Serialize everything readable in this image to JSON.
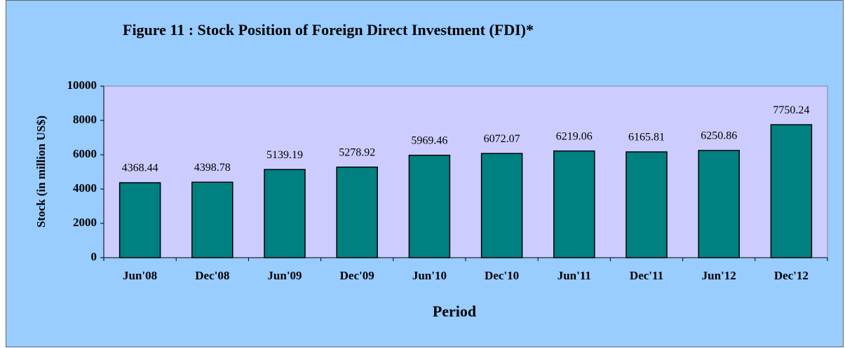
{
  "chart_data": {
    "type": "bar",
    "title": "Figure 11 : Stock Position of Foreign Direct Investment (FDI)*",
    "x_label": "Period",
    "y_label": "Stock (in million US$)",
    "categories": [
      "Jun'08",
      "Dec'08",
      "Jun'09",
      "Dec'09",
      "Jun'10",
      "Dec'10",
      "Jun'11",
      "Dec'11",
      "Jun'12",
      "Dec'12"
    ],
    "values": [
      4368.44,
      4398.78,
      5139.19,
      5278.92,
      5969.46,
      6072.07,
      6219.06,
      6165.81,
      6250.86,
      7750.24
    ],
    "color": "#008080",
    "ylim": [
      0,
      10000
    ],
    "yticks": [
      0,
      2000,
      4000,
      6000,
      8000,
      10000
    ],
    "grid": false
  }
}
